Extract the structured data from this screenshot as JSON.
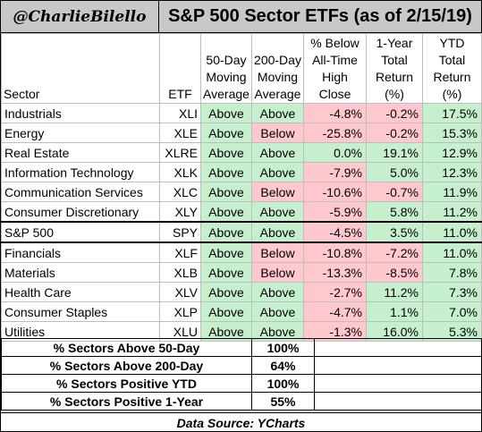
{
  "header": {
    "handle": "@CharlieBilello",
    "title": "S&P 500 Sector ETFs (as of 2/15/19)"
  },
  "columns": {
    "sector": "Sector",
    "etf": "ETF",
    "ma50": "50-Day Moving Average",
    "ma200": "200-Day Moving Average",
    "pct_below_high": "% Below All-Time High Close",
    "one_year": "1-Year Total Return (%)",
    "ytd": "YTD Total Return (%)"
  },
  "rows": [
    {
      "sector": "Industrials",
      "etf": "XLI",
      "ma50": "Above",
      "ma200": "Above",
      "pct_below_high": "-4.8%",
      "one_year": "-0.2%",
      "ytd": "17.5%"
    },
    {
      "sector": "Energy",
      "etf": "XLE",
      "ma50": "Above",
      "ma200": "Below",
      "pct_below_high": "-25.8%",
      "one_year": "-0.2%",
      "ytd": "15.3%"
    },
    {
      "sector": "Real Estate",
      "etf": "XLRE",
      "ma50": "Above",
      "ma200": "Above",
      "pct_below_high": "0.0%",
      "one_year": "19.1%",
      "ytd": "12.9%"
    },
    {
      "sector": "Information Technology",
      "etf": "XLK",
      "ma50": "Above",
      "ma200": "Above",
      "pct_below_high": "-7.9%",
      "one_year": "5.0%",
      "ytd": "12.3%"
    },
    {
      "sector": "Communication Services",
      "etf": "XLC",
      "ma50": "Above",
      "ma200": "Below",
      "pct_below_high": "-10.6%",
      "one_year": "-0.7%",
      "ytd": "11.9%"
    },
    {
      "sector": "Consumer Discretionary",
      "etf": "XLY",
      "ma50": "Above",
      "ma200": "Above",
      "pct_below_high": "-5.9%",
      "one_year": "5.8%",
      "ytd": "11.2%"
    },
    {
      "sector": "S&P 500",
      "etf": "SPY",
      "ma50": "Above",
      "ma200": "Above",
      "pct_below_high": "-4.5%",
      "one_year": "3.5%",
      "ytd": "11.0%"
    },
    {
      "sector": "Financials",
      "etf": "XLF",
      "ma50": "Above",
      "ma200": "Below",
      "pct_below_high": "-10.8%",
      "one_year": "-7.2%",
      "ytd": "11.0%"
    },
    {
      "sector": "Materials",
      "etf": "XLB",
      "ma50": "Above",
      "ma200": "Below",
      "pct_below_high": "-13.3%",
      "one_year": "-8.5%",
      "ytd": "7.8%"
    },
    {
      "sector": "Health Care",
      "etf": "XLV",
      "ma50": "Above",
      "ma200": "Above",
      "pct_below_high": "-2.7%",
      "one_year": "11.2%",
      "ytd": "7.3%"
    },
    {
      "sector": "Consumer Staples",
      "etf": "XLP",
      "ma50": "Above",
      "ma200": "Above",
      "pct_below_high": "-4.7%",
      "one_year": "1.1%",
      "ytd": "7.0%"
    },
    {
      "sector": "Utilities",
      "etf": "XLU",
      "ma50": "Above",
      "ma200": "Above",
      "pct_below_high": "-1.3%",
      "one_year": "16.0%",
      "ytd": "5.3%"
    }
  ],
  "summary": [
    {
      "label": "% Sectors Above 50-Day",
      "value": "100%"
    },
    {
      "label": "% Sectors Above 200-Day",
      "value": "64%"
    },
    {
      "label": "% Sectors Positive YTD",
      "value": "100%"
    },
    {
      "label": "% Sectors Positive 1-Year",
      "value": "55%"
    }
  ],
  "footer": {
    "source": "Data Source: YCharts"
  },
  "colors": {
    "positive": "#c6efce",
    "negative": "#ffc7ce",
    "header_bg": "#c8c8c8"
  }
}
